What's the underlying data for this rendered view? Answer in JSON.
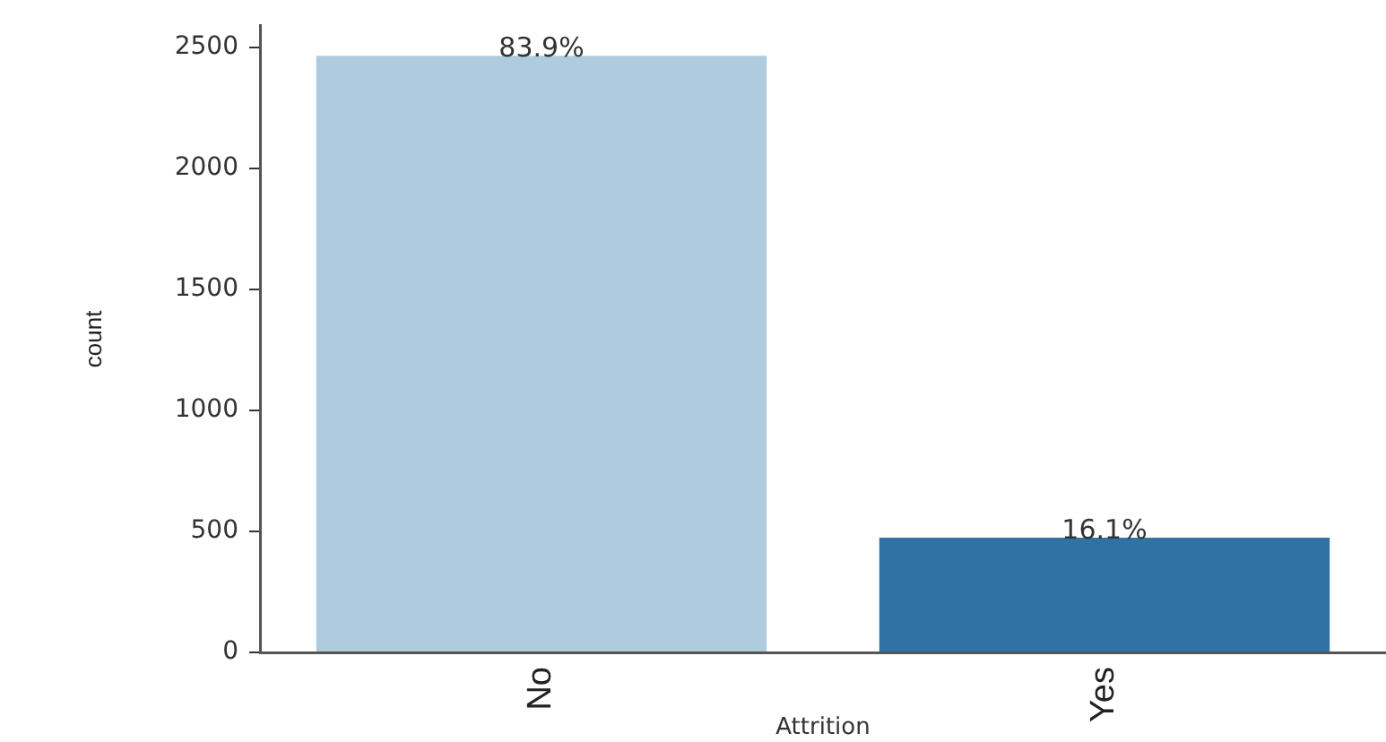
{
  "chart_data": {
    "type": "bar",
    "xlabel": "Attrition",
    "ylabel": "count",
    "categories": [
      "No",
      "Yes"
    ],
    "values": [
      2466,
      474
    ],
    "colors": [
      "#afcbde",
      "#2f72a3"
    ],
    "annotations": [
      {
        "text": "83.9%",
        "x": "No",
        "y": 2466
      },
      {
        "text": "16.1%",
        "x": "Yes",
        "y": 474
      }
    ],
    "ylim": [
      0,
      2590
    ],
    "yticks": [
      0,
      500,
      1000,
      1500,
      2000,
      2500
    ],
    "grid": false,
    "legend": false
  }
}
